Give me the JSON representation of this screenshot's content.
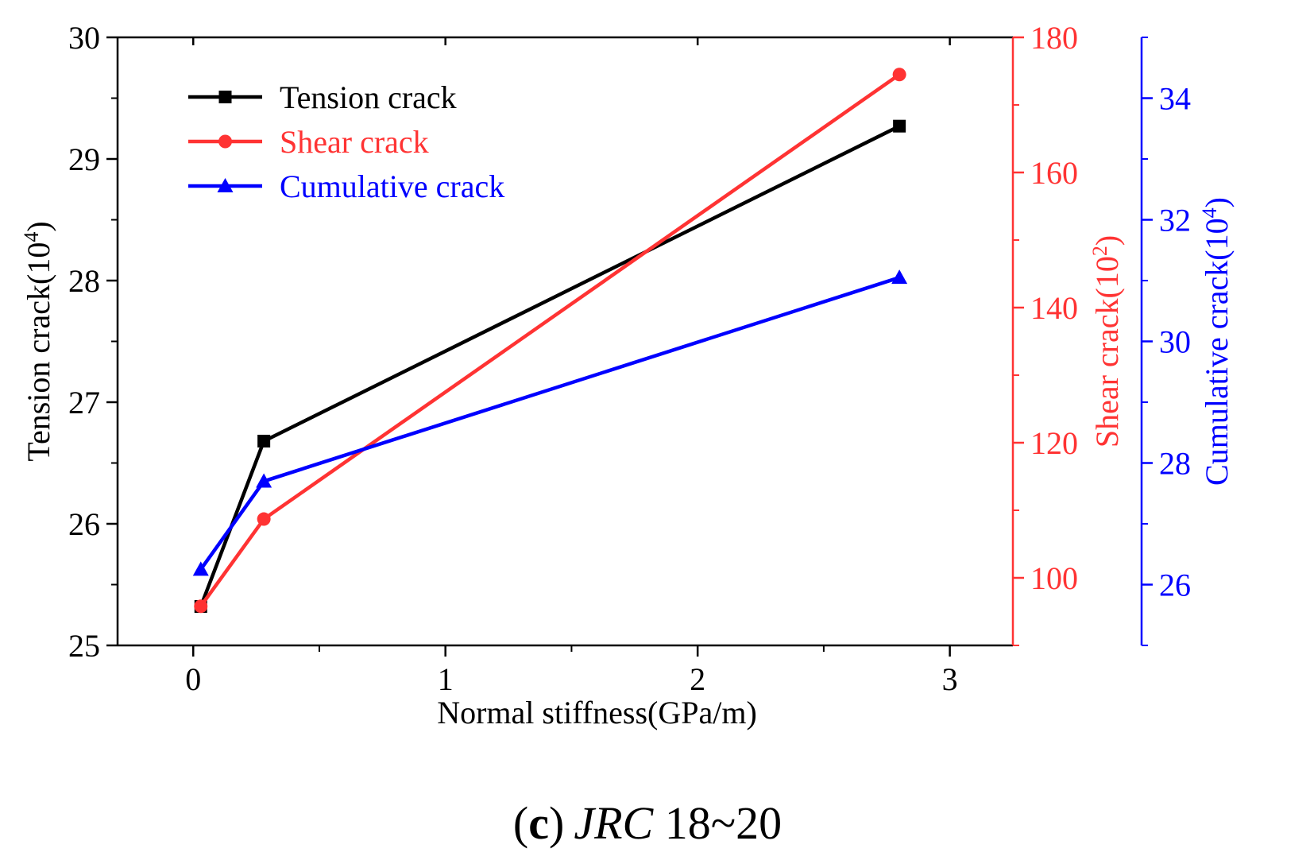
{
  "chart_data": {
    "type": "line",
    "xlabel": "Normal stiffness(GPa/m)",
    "xlim": [
      -0.3,
      3.25
    ],
    "xticks": [
      0,
      1,
      2,
      3
    ],
    "xtick_labels": [
      "0",
      "1",
      "2",
      "3"
    ],
    "x": [
      0.03,
      0.28,
      2.8
    ],
    "axes": {
      "left": {
        "label": "Tension crack(10",
        "sup": "4",
        "label_end": ")",
        "ylim": [
          25,
          30
        ],
        "ticks": [
          25,
          26,
          27,
          28,
          29,
          30
        ],
        "tick_labels": [
          "25",
          "26",
          "27",
          "28",
          "29",
          "30"
        ],
        "color": "#000000"
      },
      "right1": {
        "label": "Shear crack(10",
        "sup": "2",
        "label_end": ")",
        "ylim": [
          90,
          180
        ],
        "ticks": [
          100,
          120,
          140,
          160,
          180
        ],
        "tick_labels": [
          "100",
          "120",
          "140",
          "160",
          "180"
        ],
        "color": "#ff3333"
      },
      "right2": {
        "label": "Cumulative crack(10",
        "sup": "4",
        "label_end": ")",
        "ylim": [
          25,
          35
        ],
        "ticks": [
          26,
          28,
          30,
          32,
          34
        ],
        "tick_labels": [
          "26",
          "28",
          "30",
          "32",
          "34"
        ],
        "color": "#0000ff"
      }
    },
    "series": [
      {
        "name": "Tension crack",
        "axis": "left",
        "marker": "square",
        "color": "#000000",
        "values": [
          25.32,
          26.68,
          29.27
        ]
      },
      {
        "name": "Shear crack",
        "axis": "right1",
        "marker": "circle",
        "color": "#ff3333",
        "values": [
          95.8,
          108.7,
          174.5
        ]
      },
      {
        "name": "Cumulative crack",
        "axis": "right2",
        "marker": "triangle",
        "color": "#0000ff",
        "values": [
          26.25,
          27.7,
          31.05
        ]
      }
    ],
    "legend_position": "top-left"
  },
  "caption": {
    "letter": "c",
    "open": "(",
    "close": ")",
    "italic": "JRC",
    "range": " 18~20"
  }
}
